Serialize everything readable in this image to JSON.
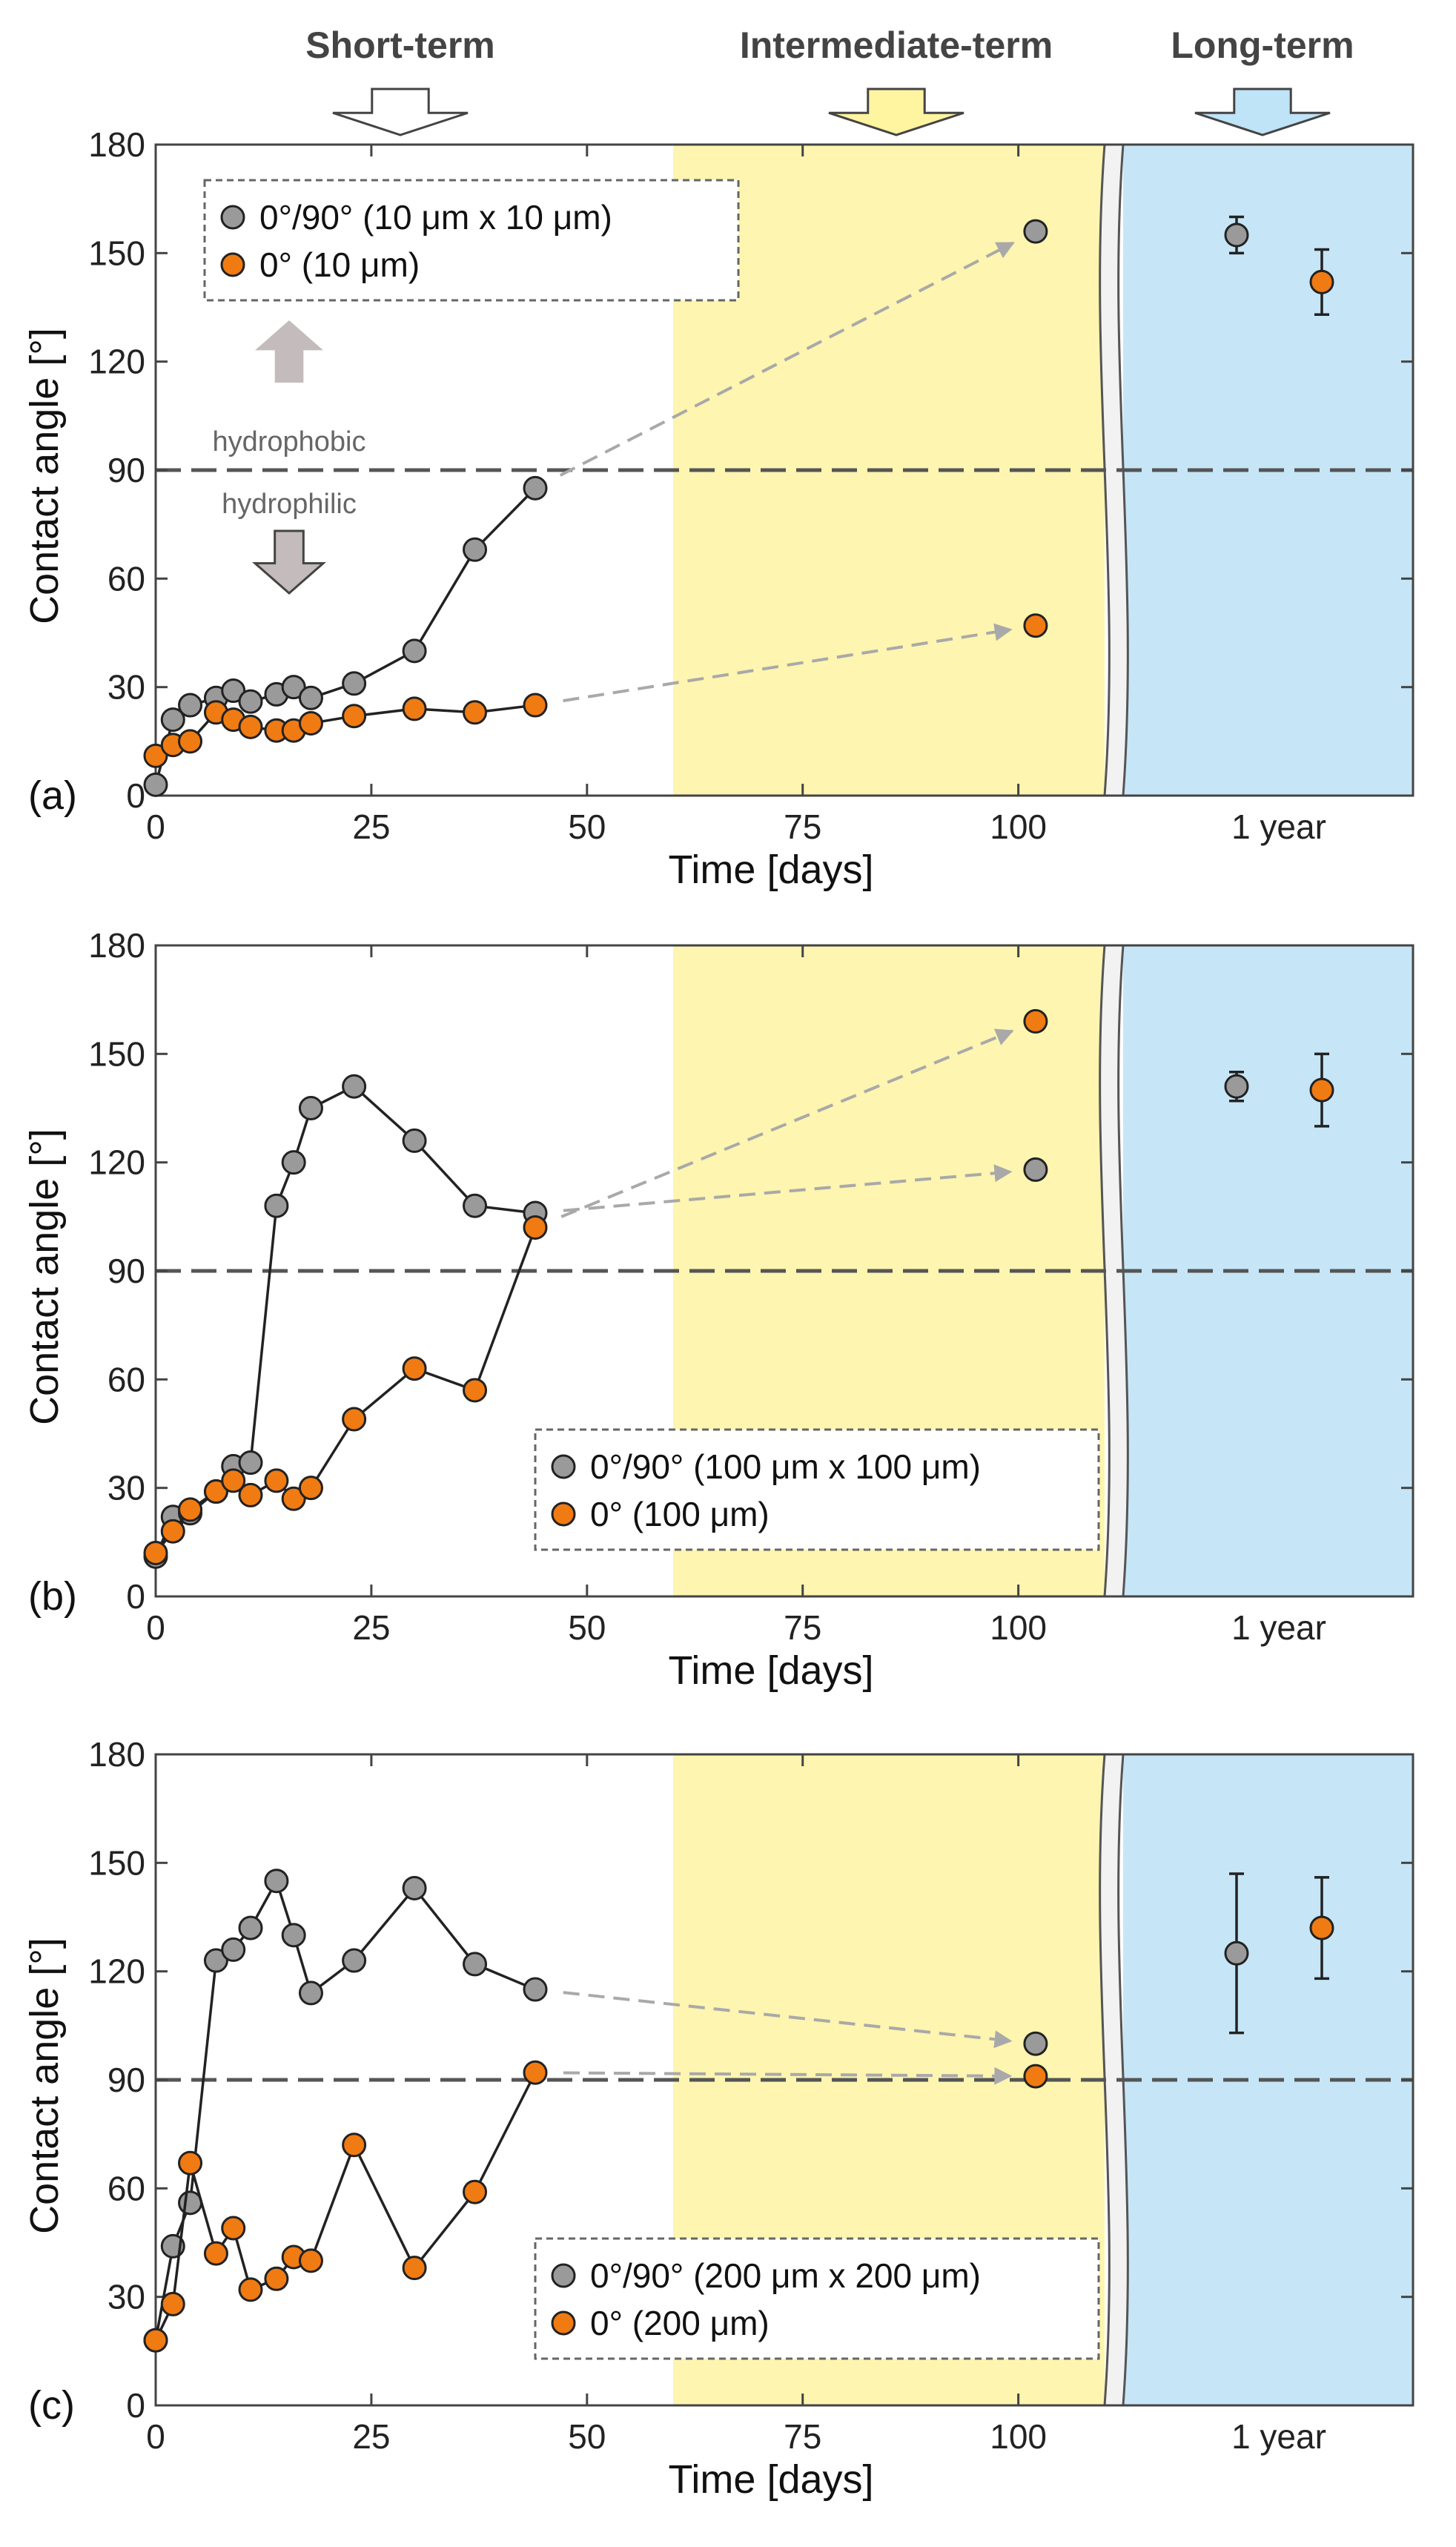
{
  "header": {
    "short_term": "Short-term",
    "intermediate_term": "Intermediate-term",
    "long_term": "Long-term"
  },
  "colors": {
    "gray_marker": "#9a9a9a",
    "orange_marker": "#f07b12",
    "intermediate_region": "#fdf5b0",
    "long_region": "#c6e6f7",
    "arrow_gray": "#a9a9a9",
    "threshold_line": "#555555",
    "hydro_arrow": "#c4bcbc",
    "short_arrow": "#ffffff",
    "intermediate_arrow": "#fff4a0",
    "long_arrow": "#bfe3f7"
  },
  "chart_data": [
    {
      "type": "scatter",
      "panel_label": "(a)",
      "xlabel": "Time [days]",
      "ylabel": "Contact angle [°]",
      "xlim": [
        0,
        110
      ],
      "ylim": [
        0,
        180
      ],
      "x_ticks": [
        0,
        25,
        50,
        75,
        100
      ],
      "y_ticks": [
        0,
        30,
        60,
        90,
        120,
        150,
        180
      ],
      "extra_x_label": "1 year",
      "intermediate_region_start": 60,
      "threshold": 90,
      "annotations": [
        "hydrophobic",
        "hydrophilic"
      ],
      "legend_position": "top-left",
      "series": [
        {
          "name": "0°/90° (10 μm x 10 μm)",
          "color": "gray",
          "x": [
            0,
            2,
            4,
            7,
            9,
            11,
            14,
            16,
            18,
            23,
            30,
            37,
            44
          ],
          "y": [
            3,
            21,
            25,
            27,
            29,
            26,
            28,
            30,
            27,
            31,
            40,
            68,
            85
          ],
          "intermediate": {
            "x": 102,
            "y": 156
          },
          "one_year": {
            "mean": 155,
            "err": 5
          }
        },
        {
          "name": "0° (10 μm)",
          "color": "orange",
          "x": [
            0,
            2,
            4,
            7,
            9,
            11,
            14,
            16,
            18,
            23,
            30,
            37,
            44
          ],
          "y": [
            11,
            14,
            15,
            23,
            21,
            19,
            18,
            18,
            20,
            22,
            24,
            23,
            25
          ],
          "intermediate": {
            "x": 102,
            "y": 47
          },
          "one_year": {
            "mean": 142,
            "err": 9
          }
        }
      ]
    },
    {
      "type": "scatter",
      "panel_label": "(b)",
      "xlabel": "Time [days]",
      "ylabel": "Contact angle [°]",
      "xlim": [
        0,
        110
      ],
      "ylim": [
        0,
        180
      ],
      "x_ticks": [
        0,
        25,
        50,
        75,
        100
      ],
      "y_ticks": [
        0,
        30,
        60,
        90,
        120,
        150,
        180
      ],
      "extra_x_label": "1 year",
      "intermediate_region_start": 60,
      "threshold": 90,
      "legend_position": "bottom-right",
      "series": [
        {
          "name": "0°/90° (100 μm x 100 μm)",
          "color": "gray",
          "x": [
            0,
            2,
            4,
            7,
            9,
            11,
            14,
            16,
            18,
            23,
            30,
            37,
            44
          ],
          "y": [
            11,
            22,
            23,
            29,
            36,
            37,
            108,
            120,
            135,
            141,
            126,
            108,
            106
          ],
          "intermediate": {
            "x": 102,
            "y": 118
          },
          "one_year": {
            "mean": 141,
            "err": 4
          }
        },
        {
          "name": "0° (100 μm)",
          "color": "orange",
          "x": [
            0,
            2,
            4,
            7,
            9,
            11,
            14,
            16,
            18,
            23,
            30,
            37,
            44
          ],
          "y": [
            12,
            18,
            24,
            29,
            32,
            28,
            32,
            27,
            30,
            49,
            63,
            57,
            102
          ],
          "intermediate": {
            "x": 102,
            "y": 159
          },
          "one_year": {
            "mean": 140,
            "err": 10
          }
        }
      ]
    },
    {
      "type": "scatter",
      "panel_label": "(c)",
      "xlabel": "Time [days]",
      "ylabel": "Contact angle [°]",
      "xlim": [
        0,
        110
      ],
      "ylim": [
        0,
        180
      ],
      "x_ticks": [
        0,
        25,
        50,
        75,
        100
      ],
      "y_ticks": [
        0,
        30,
        60,
        90,
        120,
        150,
        180
      ],
      "extra_x_label": "1 year",
      "intermediate_region_start": 60,
      "threshold": 90,
      "legend_position": "bottom-right",
      "series": [
        {
          "name": "0°/90° (200 μm x 200 μm)",
          "color": "gray",
          "x": [
            0,
            2,
            4,
            7,
            9,
            11,
            14,
            16,
            18,
            23,
            30,
            37,
            44
          ],
          "y": [
            18,
            44,
            56,
            123,
            126,
            132,
            145,
            130,
            114,
            123,
            143,
            122,
            115
          ],
          "intermediate": {
            "x": 102,
            "y": 100
          },
          "one_year": {
            "mean": 125,
            "err": 22
          }
        },
        {
          "name": "0° (200 μm)",
          "color": "orange",
          "x": [
            0,
            2,
            4,
            7,
            9,
            11,
            14,
            16,
            18,
            23,
            30,
            37,
            44
          ],
          "y": [
            18,
            28,
            67,
            42,
            49,
            32,
            35,
            41,
            40,
            72,
            38,
            59,
            92
          ],
          "intermediate": {
            "x": 102,
            "y": 91
          },
          "one_year": {
            "mean": 132,
            "err": 14
          }
        }
      ]
    }
  ]
}
